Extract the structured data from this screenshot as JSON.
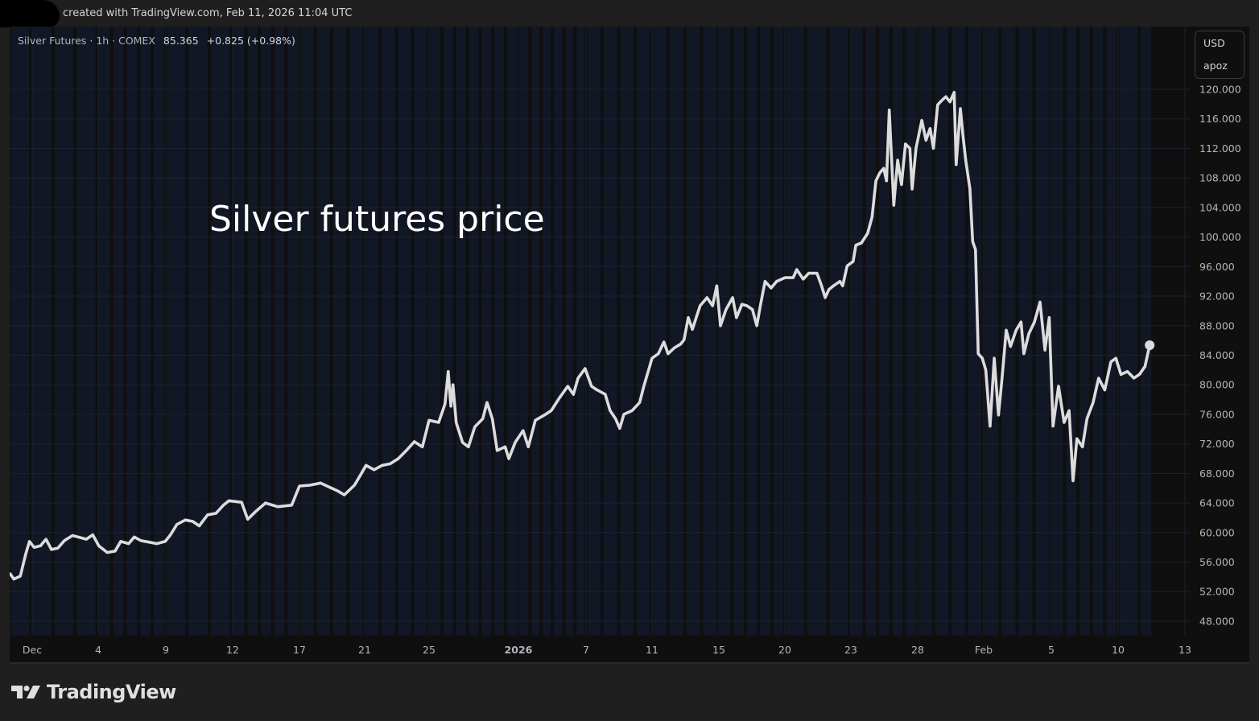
{
  "header": {
    "text": "created with TradingView.com, Feb 11, 2026 11:04 UTC"
  },
  "legend": {
    "symbol": "Silver Futures · 1h · COMEX",
    "last": "85.365",
    "change": "+0.825 (+0.98%)"
  },
  "price_scale": {
    "currency": "USD",
    "unit": "apoz"
  },
  "logo": {
    "text": "TradingView"
  },
  "colors": {
    "background": "#0f0f0f",
    "session_band": "#121725",
    "line": "#dcdcdc",
    "text": "#b2b5be",
    "grid": "#1c2130"
  },
  "chart_data": {
    "type": "line",
    "title": "",
    "annotation": "Silver futures price",
    "xlabel": "",
    "ylabel": "",
    "ylim": [
      44,
      124
    ],
    "grid": true,
    "yticks": [
      "48.000",
      "52.000",
      "56.000",
      "60.000",
      "64.000",
      "68.000",
      "72.000",
      "76.000",
      "80.000",
      "84.000",
      "88.000",
      "92.000",
      "96.000",
      "100.000",
      "104.000",
      "108.000",
      "112.000",
      "116.000",
      "120.000"
    ],
    "xticks": [
      {
        "label": "Dec",
        "date": "2025-12-01"
      },
      {
        "label": "4",
        "date": "2025-12-04"
      },
      {
        "label": "9",
        "date": "2025-12-09"
      },
      {
        "label": "12",
        "date": "2025-12-12"
      },
      {
        "label": "17",
        "date": "2025-12-17"
      },
      {
        "label": "21",
        "date": "2025-12-21"
      },
      {
        "label": "25",
        "date": "2025-12-25"
      },
      {
        "label": "2026",
        "date": "2026-01-01"
      },
      {
        "label": "7",
        "date": "2026-01-07"
      },
      {
        "label": "11",
        "date": "2026-01-11"
      },
      {
        "label": "15",
        "date": "2026-01-15"
      },
      {
        "label": "20",
        "date": "2026-01-20"
      },
      {
        "label": "23",
        "date": "2026-01-23"
      },
      {
        "label": "28",
        "date": "2026-01-28"
      },
      {
        "label": "Feb",
        "date": "2026-02-01"
      },
      {
        "label": "5",
        "date": "2026-02-05"
      },
      {
        "label": "10",
        "date": "2026-02-10"
      },
      {
        "label": "13",
        "date": "2026-02-13"
      }
    ],
    "series": [
      {
        "points": [
          [
            "2025-11-30 00:00",
            54.4
          ],
          [
            "2025-11-30 04:00",
            53.7
          ],
          [
            "2025-11-30 11:00",
            54.1
          ],
          [
            "2025-11-30 17:00",
            57.1
          ],
          [
            "2025-11-30 21:00",
            58.8
          ],
          [
            "2025-12-01 02:00",
            58.0
          ],
          [
            "2025-12-01 09:00",
            58.2
          ],
          [
            "2025-12-01 15:00",
            59.1
          ],
          [
            "2025-12-01 21:00",
            57.7
          ],
          [
            "2025-12-02 04:00",
            57.9
          ],
          [
            "2025-12-02 11:00",
            58.9
          ],
          [
            "2025-12-02 20:00",
            59.6
          ],
          [
            "2025-12-03 05:00",
            59.3
          ],
          [
            "2025-12-03 11:00",
            59.1
          ],
          [
            "2025-12-03 18:00",
            59.7
          ],
          [
            "2025-12-04 01:00",
            58.2
          ],
          [
            "2025-12-04 16:00",
            57.3
          ],
          [
            "2025-12-05 06:00",
            57.5
          ],
          [
            "2025-12-05 16:00",
            58.8
          ],
          [
            "2025-12-06 06:00",
            58.5
          ],
          [
            "2025-12-06 16:00",
            59.4
          ],
          [
            "2025-12-07 04:00",
            58.9
          ],
          [
            "2025-12-07 18:00",
            58.7
          ],
          [
            "2025-12-08 08:00",
            58.5
          ],
          [
            "2025-12-08 23:00",
            58.8
          ],
          [
            "2025-12-09 05:00",
            59.7
          ],
          [
            "2025-12-09 12:00",
            61.1
          ],
          [
            "2025-12-09 21:00",
            61.7
          ],
          [
            "2025-12-10 05:00",
            61.5
          ],
          [
            "2025-12-10 12:00",
            60.9
          ],
          [
            "2025-12-10 21:00",
            62.4
          ],
          [
            "2025-12-11 06:00",
            62.6
          ],
          [
            "2025-12-11 14:00",
            63.7
          ],
          [
            "2025-12-11 20:00",
            64.3
          ],
          [
            "2025-12-12 16:00",
            64.1
          ],
          [
            "2025-12-13 03:00",
            61.8
          ],
          [
            "2025-12-13 18:00",
            62.9
          ],
          [
            "2025-12-14 11:00",
            64.0
          ],
          [
            "2025-12-15 09:00",
            63.5
          ],
          [
            "2025-12-16 10:00",
            63.7
          ],
          [
            "2025-12-17 00:00",
            66.3
          ],
          [
            "2025-12-17 15:00",
            66.4
          ],
          [
            "2025-12-18 07:00",
            66.7
          ],
          [
            "2025-12-18 21:00",
            66.1
          ],
          [
            "2025-12-19 09:00",
            65.6
          ],
          [
            "2025-12-19 18:00",
            65.1
          ],
          [
            "2025-12-20 09:00",
            66.4
          ],
          [
            "2025-12-20 18:00",
            67.8
          ],
          [
            "2025-12-21 02:00",
            69.1
          ],
          [
            "2025-12-21 14:00",
            68.5
          ],
          [
            "2025-12-22 02:00",
            69.1
          ],
          [
            "2025-12-22 14:00",
            69.3
          ],
          [
            "2025-12-23 02:00",
            70.0
          ],
          [
            "2025-12-23 14:00",
            71.1
          ],
          [
            "2025-12-24 02:00",
            72.3
          ],
          [
            "2025-12-24 14:00",
            71.6
          ],
          [
            "2025-12-25 00:00",
            75.2
          ],
          [
            "2025-12-25 18:00",
            74.9
          ],
          [
            "2025-12-26 06:00",
            77.4
          ],
          [
            "2025-12-26 12:00",
            81.8
          ],
          [
            "2025-12-26 17:00",
            77.1
          ],
          [
            "2025-12-26 21:00",
            80.0
          ],
          [
            "2025-12-27 03:00",
            74.9
          ],
          [
            "2025-12-27 15:00",
            72.2
          ],
          [
            "2025-12-28 02:00",
            71.6
          ],
          [
            "2025-12-28 14:00",
            74.3
          ],
          [
            "2025-12-29 05:00",
            75.4
          ],
          [
            "2025-12-29 13:00",
            77.6
          ],
          [
            "2025-12-29 23:00",
            75.4
          ],
          [
            "2025-12-30 08:00",
            71.1
          ],
          [
            "2025-12-30 23:00",
            71.6
          ],
          [
            "2025-12-31 06:00",
            70.0
          ],
          [
            "2025-12-31 18:00",
            72.2
          ],
          [
            "2026-01-01 10:00",
            73.8
          ],
          [
            "2026-01-01 21:00",
            71.6
          ],
          [
            "2026-01-02 12:00",
            75.2
          ],
          [
            "2026-01-03 10:00",
            76.0
          ],
          [
            "2026-01-03 22:00",
            76.5
          ],
          [
            "2026-01-04 15:00",
            78.2
          ],
          [
            "2026-01-05 09:00",
            79.8
          ],
          [
            "2026-01-05 21:00",
            78.7
          ],
          [
            "2026-01-06 07:00",
            80.9
          ],
          [
            "2026-01-06 22:00",
            82.2
          ],
          [
            "2026-01-07 08:00",
            79.8
          ],
          [
            "2026-01-07 16:00",
            79.3
          ],
          [
            "2026-01-08 04:00",
            78.7
          ],
          [
            "2026-01-08 11:00",
            76.5
          ],
          [
            "2026-01-08 19:00",
            75.4
          ],
          [
            "2026-01-09 01:00",
            74.1
          ],
          [
            "2026-01-09 07:00",
            76.0
          ],
          [
            "2026-01-09 19:00",
            76.5
          ],
          [
            "2026-01-10 06:00",
            77.6
          ],
          [
            "2026-01-10 12:00",
            79.8
          ],
          [
            "2026-01-11 00:00",
            83.6
          ],
          [
            "2026-01-11 09:00",
            84.2
          ],
          [
            "2026-01-11 17:00",
            85.8
          ],
          [
            "2026-01-11 23:00",
            84.2
          ],
          [
            "2026-01-12 08:00",
            85.0
          ],
          [
            "2026-01-12 17:00",
            85.5
          ],
          [
            "2026-01-12 22:00",
            86.1
          ],
          [
            "2026-01-13 04:00",
            89.1
          ],
          [
            "2026-01-13 10:00",
            87.5
          ],
          [
            "2026-01-13 21:00",
            90.7
          ],
          [
            "2026-01-14 07:00",
            91.8
          ],
          [
            "2026-01-14 15:00",
            90.7
          ],
          [
            "2026-01-14 21:00",
            93.4
          ],
          [
            "2026-01-15 03:00",
            88.0
          ],
          [
            "2026-01-15 13:00",
            90.2
          ],
          [
            "2026-01-16 01:00",
            91.8
          ],
          [
            "2026-01-16 08:00",
            89.1
          ],
          [
            "2026-01-16 18:00",
            90.9
          ],
          [
            "2026-01-17 03:00",
            90.7
          ],
          [
            "2026-01-17 13:00",
            90.2
          ],
          [
            "2026-01-17 21:00",
            88.0
          ],
          [
            "2026-01-18 04:00",
            90.9
          ],
          [
            "2026-01-18 12:00",
            94.0
          ],
          [
            "2026-01-18 23:00",
            93.1
          ],
          [
            "2026-01-19 09:00",
            94.0
          ],
          [
            "2026-01-20 00:00",
            94.5
          ],
          [
            "2026-01-20 09:00",
            94.5
          ],
          [
            "2026-01-20 13:00",
            95.6
          ],
          [
            "2026-01-20 20:00",
            94.3
          ],
          [
            "2026-01-21 02:00",
            95.1
          ],
          [
            "2026-01-21 11:00",
            95.1
          ],
          [
            "2026-01-21 16:00",
            93.4
          ],
          [
            "2026-01-21 20:00",
            91.8
          ],
          [
            "2026-01-22 00:00",
            92.9
          ],
          [
            "2026-01-22 05:00",
            93.4
          ],
          [
            "2026-01-22 12:00",
            94.0
          ],
          [
            "2026-01-22 15:00",
            93.4
          ],
          [
            "2026-01-22 20:00",
            96.1
          ],
          [
            "2026-01-23 04:00",
            96.7
          ],
          [
            "2026-01-23 09:00",
            98.9
          ],
          [
            "2026-01-23 19:00",
            99.2
          ],
          [
            "2026-01-24 06:00",
            100.5
          ],
          [
            "2026-01-24 14:00",
            102.7
          ],
          [
            "2026-01-24 21:00",
            107.6
          ],
          [
            "2026-01-25 04:00",
            108.7
          ],
          [
            "2026-01-25 11:00",
            109.3
          ],
          [
            "2026-01-25 16:00",
            107.6
          ],
          [
            "2026-01-25 21:00",
            117.2
          ],
          [
            "2026-01-26 05:00",
            104.3
          ],
          [
            "2026-01-26 12:00",
            110.4
          ],
          [
            "2026-01-26 19:00",
            107.1
          ],
          [
            "2026-01-27 02:00",
            112.6
          ],
          [
            "2026-01-27 10:00",
            112.0
          ],
          [
            "2026-01-27 14:00",
            106.5
          ],
          [
            "2026-01-27 21:00",
            112.0
          ],
          [
            "2026-01-28 06:00",
            115.8
          ],
          [
            "2026-01-28 12:00",
            113.1
          ],
          [
            "2026-01-28 18:00",
            114.7
          ],
          [
            "2026-01-28 23:00",
            112.0
          ],
          [
            "2026-01-29 05:00",
            117.9
          ],
          [
            "2026-01-29 11:00",
            118.5
          ],
          [
            "2026-01-29 17:00",
            119.0
          ],
          [
            "2026-01-29 23:00",
            118.3
          ],
          [
            "2026-01-30 05:00",
            119.6
          ],
          [
            "2026-01-30 08:00",
            109.8
          ],
          [
            "2026-01-30 14:00",
            117.4
          ],
          [
            "2026-01-30 18:00",
            113.6
          ],
          [
            "2026-01-30 22:00",
            110.3
          ],
          [
            "2026-01-31 04:00",
            106.5
          ],
          [
            "2026-01-31 08:00",
            99.4
          ],
          [
            "2026-01-31 12:00",
            98.3
          ],
          [
            "2026-01-31 16:00",
            84.2
          ],
          [
            "2026-01-31 22:00",
            83.6
          ],
          [
            "2026-02-01 03:00",
            82.0
          ],
          [
            "2026-02-01 09:00",
            74.4
          ],
          [
            "2026-02-01 15:00",
            83.6
          ],
          [
            "2026-02-01 21:00",
            75.9
          ],
          [
            "2026-02-02 02:00",
            80.9
          ],
          [
            "2026-02-02 08:00",
            87.4
          ],
          [
            "2026-02-02 14:00",
            85.2
          ],
          [
            "2026-02-02 22:00",
            87.4
          ],
          [
            "2026-02-03 05:00",
            88.5
          ],
          [
            "2026-02-03 09:00",
            84.2
          ],
          [
            "2026-02-03 16:00",
            86.9
          ],
          [
            "2026-02-04 00:00",
            88.5
          ],
          [
            "2026-02-04 08:00",
            91.2
          ],
          [
            "2026-02-04 15:00",
            84.7
          ],
          [
            "2026-02-04 21:00",
            89.1
          ],
          [
            "2026-02-05 03:00",
            74.4
          ],
          [
            "2026-02-05 13:00",
            79.8
          ],
          [
            "2026-02-05 23:00",
            74.9
          ],
          [
            "2026-02-06 08:00",
            76.5
          ],
          [
            "2026-02-06 15:00",
            67.0
          ],
          [
            "2026-02-06 22:00",
            72.7
          ],
          [
            "2026-02-07 08:00",
            71.6
          ],
          [
            "2026-02-07 16:00",
            75.4
          ],
          [
            "2026-02-08 03:00",
            77.6
          ],
          [
            "2026-02-08 13:00",
            80.9
          ],
          [
            "2026-02-09 00:00",
            79.3
          ],
          [
            "2026-02-09 11:00",
            83.1
          ],
          [
            "2026-02-09 20:00",
            83.6
          ],
          [
            "2026-02-10 03:00",
            81.4
          ],
          [
            "2026-02-10 10:00",
            81.8
          ],
          [
            "2026-02-10 17:00",
            80.9
          ],
          [
            "2026-02-10 23:00",
            81.4
          ],
          [
            "2026-02-11 05:00",
            82.5
          ],
          [
            "2026-02-11 10:00",
            85.365
          ]
        ]
      }
    ]
  }
}
